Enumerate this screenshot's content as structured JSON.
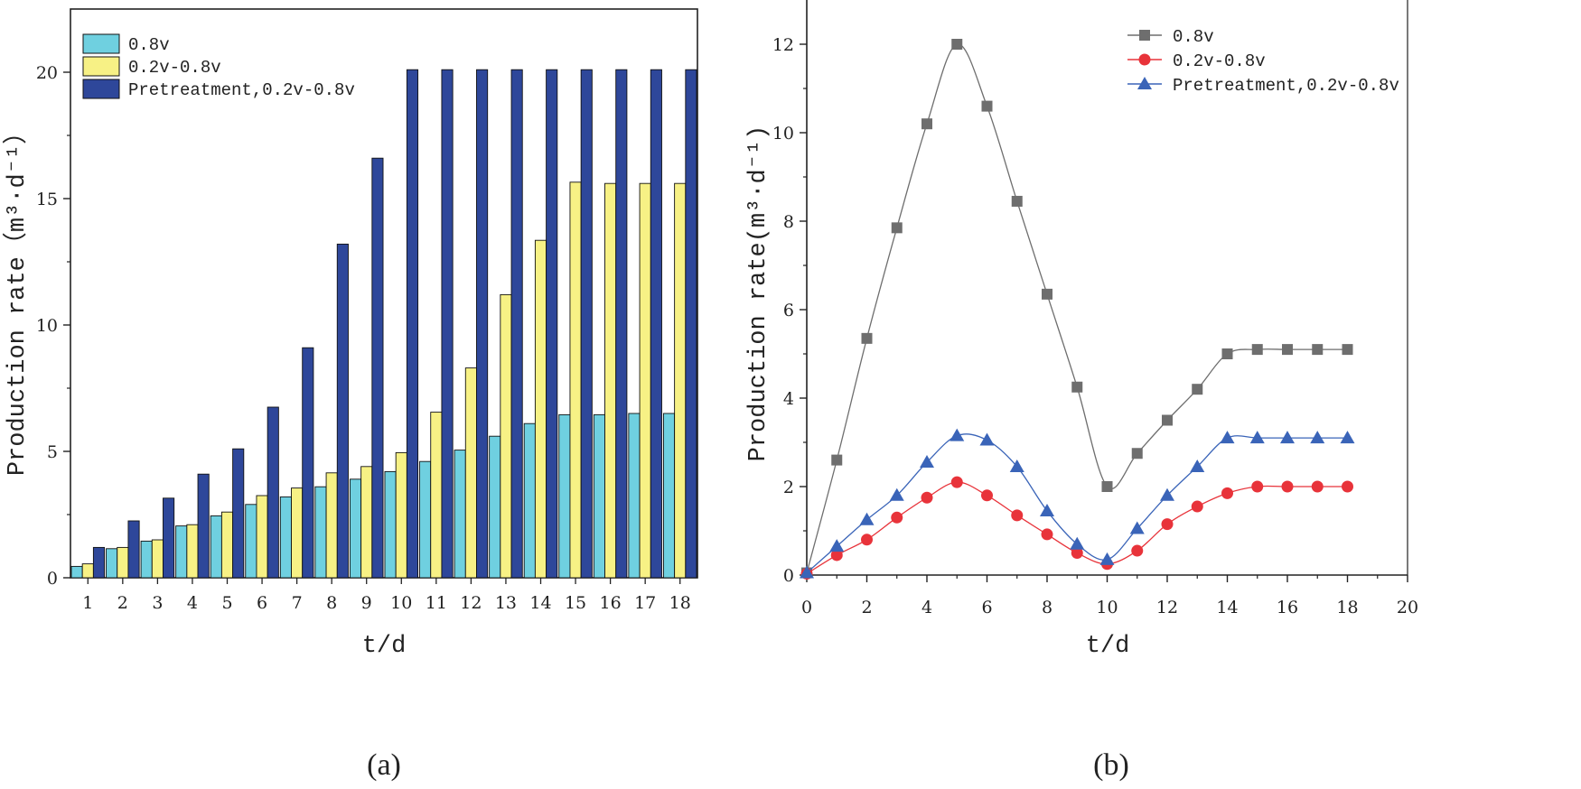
{
  "chart_data": [
    {
      "type": "bar",
      "caption": "(a)",
      "xlabel": "t/d",
      "ylabel": "Production rate（m³·d⁻¹）",
      "ylim": [
        0,
        22.5
      ],
      "yticks": [
        0,
        5,
        10,
        15,
        20
      ],
      "categories": [
        "1",
        "2",
        "3",
        "4",
        "5",
        "6",
        "7",
        "8",
        "9",
        "10",
        "11",
        "12",
        "13",
        "14",
        "15",
        "16",
        "17",
        "18"
      ],
      "legend_position": "top-left",
      "series": [
        {
          "name": "0.8v",
          "color": "#6fd0e0",
          "values": [
            0.45,
            1.15,
            1.45,
            2.05,
            2.45,
            2.9,
            3.2,
            3.6,
            3.9,
            4.2,
            4.6,
            5.05,
            5.6,
            6.1,
            6.45,
            6.45,
            6.5,
            6.5
          ]
        },
        {
          "name": "0.2v-0.8v",
          "color": "#f7f185",
          "values": [
            0.55,
            1.2,
            1.5,
            2.1,
            2.6,
            3.25,
            3.55,
            4.15,
            4.4,
            4.95,
            6.55,
            8.3,
            11.2,
            13.35,
            15.65,
            15.6,
            15.6,
            15.6
          ]
        },
        {
          "name": "Pretreatment,0.2v-0.8v",
          "color": "#2e479a",
          "values": [
            1.2,
            2.25,
            3.15,
            4.1,
            5.1,
            6.75,
            9.1,
            13.2,
            16.6,
            20.1,
            20.1,
            20.1,
            20.1,
            20.1,
            20.1,
            20.1,
            20.1,
            20.1
          ]
        }
      ]
    },
    {
      "type": "line",
      "caption": "(b)",
      "xlabel": "t/d",
      "ylabel": "Production rate(m³·d⁻¹)",
      "xlim": [
        0,
        20
      ],
      "ylim": [
        0,
        13
      ],
      "xticks": [
        0,
        2,
        4,
        6,
        8,
        10,
        12,
        14,
        16,
        18,
        20
      ],
      "yticks": [
        0,
        2,
        4,
        6,
        8,
        10,
        12
      ],
      "legend_position": "top-right",
      "x": [
        0,
        1,
        2,
        3,
        4,
        5,
        6,
        7,
        8,
        9,
        10,
        11,
        12,
        13,
        14,
        15,
        16,
        17,
        18
      ],
      "series": [
        {
          "name": "0.8v",
          "color": "#6e6e6e",
          "marker": "square",
          "values": [
            0.05,
            2.6,
            5.35,
            7.85,
            10.2,
            12.0,
            10.6,
            8.45,
            6.35,
            4.25,
            2.0,
            2.75,
            3.5,
            4.2,
            5.0,
            5.1,
            5.1,
            5.1,
            5.1
          ]
        },
        {
          "name": "0.2v-0.8v",
          "color": "#e8333a",
          "marker": "circle",
          "values": [
            0.03,
            0.45,
            0.8,
            1.3,
            1.75,
            2.1,
            1.8,
            1.35,
            0.92,
            0.5,
            0.25,
            0.55,
            1.15,
            1.55,
            1.85,
            2.0,
            2.0,
            2.0,
            2.0
          ]
        },
        {
          "name": "Pretreatment,0.2v-0.8v",
          "color": "#3a64b8",
          "marker": "triangle",
          "values": [
            0.05,
            0.65,
            1.25,
            1.8,
            2.55,
            3.15,
            3.05,
            2.45,
            1.45,
            0.7,
            0.35,
            1.05,
            1.8,
            2.45,
            3.1,
            3.1,
            3.1,
            3.1,
            3.1
          ]
        }
      ]
    }
  ]
}
